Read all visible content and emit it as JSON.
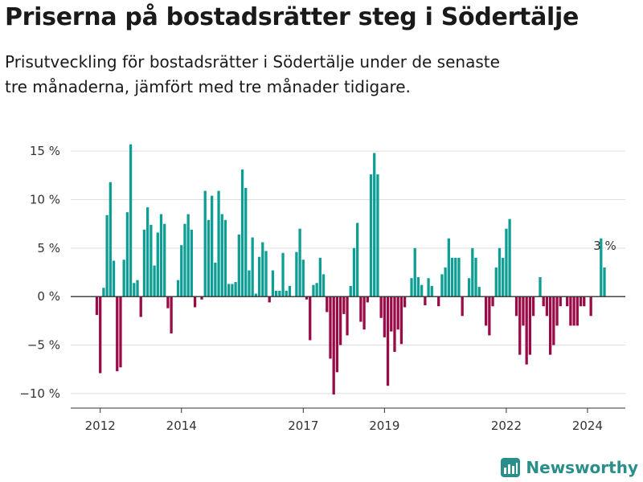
{
  "header": {
    "title": "Priserna på bostadsrätter steg i Södertälje",
    "subtitle": "Prisutveckling för bostadsrätter i Södertälje under de senaste tre månaderna, jämfört med tre månader tidigare."
  },
  "logo": {
    "text": "Newsworthy",
    "icon": "newsworthy-logo-icon"
  },
  "colors": {
    "positive": "#0f9e95",
    "negative": "#9a0a47",
    "grid": "#dddddd",
    "axis": "#333333"
  },
  "chart_data": {
    "type": "bar",
    "title": "",
    "xlabel": "",
    "ylabel": "",
    "ylim": [
      -11.5,
      16.5
    ],
    "yticks": [
      -10,
      -5,
      0,
      5,
      10,
      15
    ],
    "ytick_labels": [
      "−10 %",
      "−5 %",
      "0 %",
      "5 %",
      "10 %",
      "15 %"
    ],
    "xticks": [
      "2012-01",
      "2014-01",
      "2017-01",
      "2019-01",
      "2022-01",
      "2024-01"
    ],
    "xtick_labels": [
      "2012",
      "2014",
      "2017",
      "2019",
      "2022",
      "2024"
    ],
    "grid": true,
    "end_label": "3 %",
    "start_month": "2011-12",
    "end_month": "2024-03",
    "values": [
      -1.9,
      -7.9,
      0.9,
      8.4,
      11.8,
      3.7,
      -7.7,
      -7.3,
      3.8,
      8.7,
      15.7,
      1.4,
      1.7,
      -2.1,
      6.9,
      9.2,
      7.4,
      3.2,
      6.6,
      8.5,
      7.5,
      -1.2,
      -3.8,
      0,
      1.7,
      5.3,
      7.5,
      8.5,
      6.9,
      -1.1,
      0,
      -0.3,
      10.9,
      7.9,
      10.4,
      3.5,
      10.9,
      8.5,
      7.9,
      1.3,
      1.3,
      1.5,
      6.4,
      13.1,
      11.2,
      2.7,
      6.1,
      0.3,
      4.1,
      5.6,
      4.7,
      -0.6,
      2.7,
      0.6,
      0.6,
      4.5,
      0.6,
      1.1,
      0,
      4.6,
      7.0,
      3.8,
      -0.3,
      -4.5,
      1.2,
      1.4,
      4.0,
      2.3,
      -1.6,
      -6.4,
      -10.1,
      -7.8,
      -5.0,
      -1.8,
      -4.0,
      1.1,
      5.0,
      7.6,
      -2.6,
      -3.4,
      -0.6,
      12.6,
      14.8,
      12.6,
      -2.2,
      -4.2,
      -9.2,
      -3.6,
      -5.7,
      -3.4,
      -4.9,
      -1.1,
      0,
      1.9,
      5.0,
      2.0,
      1.2,
      -0.9,
      1.9,
      1.1,
      0,
      -1.0,
      2.3,
      3.0,
      6.0,
      4.0,
      4.0,
      4.0,
      -2.0,
      0,
      1.9,
      5.0,
      4.0,
      1.0,
      0,
      -3.0,
      -4.0,
      -1.0,
      3.0,
      5.0,
      4.0,
      7.0,
      8.0,
      0,
      -2.0,
      -6.0,
      -3.0,
      -7.0,
      -6.0,
      -2.0,
      0,
      2.0,
      -1.0,
      -2.0,
      -6.0,
      -5.0,
      -3.0,
      -1.0,
      0,
      -1.0,
      -3.0,
      -3.0,
      -3.0,
      -1.0,
      -1.0,
      0,
      -2.0,
      0,
      0,
      6.0,
      3.0
    ]
  }
}
